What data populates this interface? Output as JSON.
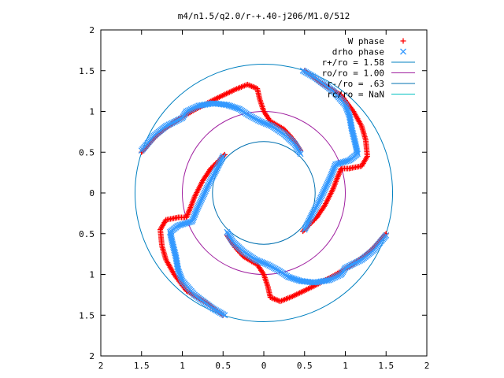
{
  "chart_data": {
    "type": "scatter",
    "title": "m4/n1.5/q2.0/r-+.40-j206/M1.0/512",
    "xlim": [
      -2,
      2
    ],
    "ylim": [
      -2,
      2
    ],
    "x_ticks": [
      -2,
      -1.5,
      -1,
      -0.5,
      0,
      0.5,
      1,
      1.5,
      2
    ],
    "y_ticks": [
      -2,
      -1.5,
      -1,
      -0.5,
      0,
      0.5,
      1,
      1.5,
      2
    ],
    "x_tick_labels": [
      "2",
      "1.5",
      "1",
      "0.5",
      "0",
      "0.5",
      "1",
      "1.5",
      "2"
    ],
    "y_tick_labels": [
      "2",
      "1.5",
      "1",
      "0.5",
      "0",
      "0.5",
      "1",
      "1.5",
      "2"
    ],
    "grid": false,
    "legend_position": "top-right",
    "series": [
      {
        "name": "W phase",
        "kind": "points",
        "marker": "plus",
        "color": "#ff0000",
        "arms": [
          [
            [
              -1.5,
              0.5
            ],
            [
              -1.3,
              0.72
            ],
            [
              -1.1,
              0.87
            ],
            [
              -0.85,
              1.02
            ],
            [
              -0.6,
              1.15
            ],
            [
              -0.35,
              1.27
            ],
            [
              -0.2,
              1.33
            ],
            [
              -0.08,
              1.28
            ],
            [
              -0.05,
              1.15
            ],
            [
              0.0,
              1.0
            ],
            [
              0.08,
              0.88
            ],
            [
              0.25,
              0.78
            ],
            [
              0.35,
              0.67
            ],
            [
              0.45,
              0.52
            ]
          ],
          [
            [
              0.5,
              1.5
            ],
            [
              0.7,
              1.35
            ],
            [
              0.95,
              1.2
            ],
            [
              1.1,
              1.0
            ],
            [
              1.2,
              0.82
            ],
            [
              1.25,
              0.65
            ],
            [
              1.27,
              0.45
            ],
            [
              1.2,
              0.33
            ],
            [
              1.05,
              0.3
            ],
            [
              0.95,
              0.3
            ],
            [
              0.9,
              0.18
            ],
            [
              0.85,
              0.05
            ],
            [
              0.75,
              -0.15
            ],
            [
              0.65,
              -0.3
            ],
            [
              0.48,
              -0.47
            ]
          ],
          [
            [
              1.5,
              -0.5
            ],
            [
              1.3,
              -0.72
            ],
            [
              1.1,
              -0.87
            ],
            [
              0.85,
              -1.02
            ],
            [
              0.6,
              -1.15
            ],
            [
              0.35,
              -1.27
            ],
            [
              0.2,
              -1.33
            ],
            [
              0.08,
              -1.28
            ],
            [
              0.05,
              -1.15
            ],
            [
              0.0,
              -1.0
            ],
            [
              -0.08,
              -0.88
            ],
            [
              -0.25,
              -0.78
            ],
            [
              -0.35,
              -0.67
            ],
            [
              -0.45,
              -0.52
            ]
          ],
          [
            [
              -0.5,
              -1.5
            ],
            [
              -0.7,
              -1.35
            ],
            [
              -0.95,
              -1.2
            ],
            [
              -1.1,
              -1.0
            ],
            [
              -1.2,
              -0.82
            ],
            [
              -1.25,
              -0.65
            ],
            [
              -1.27,
              -0.45
            ],
            [
              -1.2,
              -0.33
            ],
            [
              -1.05,
              -0.3
            ],
            [
              -0.95,
              -0.3
            ],
            [
              -0.9,
              -0.18
            ],
            [
              -0.85,
              -0.05
            ],
            [
              -0.75,
              0.15
            ],
            [
              -0.65,
              0.3
            ],
            [
              -0.48,
              0.47
            ]
          ]
        ]
      },
      {
        "name": "drho phase",
        "kind": "points",
        "marker": "cross",
        "color": "#3399ff",
        "arms": [
          [
            [
              -1.5,
              0.52
            ],
            [
              -1.35,
              0.7
            ],
            [
              -1.2,
              0.82
            ],
            [
              -1.0,
              0.92
            ],
            [
              -0.95,
              1.0
            ],
            [
              -0.8,
              1.07
            ],
            [
              -0.62,
              1.1
            ],
            [
              -0.45,
              1.08
            ],
            [
              -0.3,
              1.03
            ],
            [
              -0.18,
              0.95
            ],
            [
              -0.05,
              0.88
            ],
            [
              0.1,
              0.82
            ],
            [
              0.25,
              0.72
            ],
            [
              0.38,
              0.6
            ],
            [
              0.45,
              0.48
            ]
          ],
          [
            [
              0.48,
              1.5
            ],
            [
              0.62,
              1.42
            ],
            [
              0.85,
              1.25
            ],
            [
              1.0,
              1.08
            ],
            [
              1.05,
              0.95
            ],
            [
              1.08,
              0.78
            ],
            [
              1.12,
              0.62
            ],
            [
              1.15,
              0.48
            ],
            [
              1.05,
              0.4
            ],
            [
              0.88,
              0.35
            ],
            [
              0.82,
              0.2
            ],
            [
              0.75,
              0.05
            ],
            [
              0.68,
              -0.1
            ],
            [
              0.6,
              -0.25
            ],
            [
              0.5,
              -0.45
            ]
          ],
          [
            [
              1.5,
              -0.52
            ],
            [
              1.35,
              -0.7
            ],
            [
              1.2,
              -0.82
            ],
            [
              1.0,
              -0.92
            ],
            [
              0.95,
              -1.0
            ],
            [
              0.8,
              -1.07
            ],
            [
              0.62,
              -1.1
            ],
            [
              0.45,
              -1.08
            ],
            [
              0.3,
              -1.03
            ],
            [
              0.18,
              -0.95
            ],
            [
              0.05,
              -0.88
            ],
            [
              -0.1,
              -0.82
            ],
            [
              -0.25,
              -0.72
            ],
            [
              -0.38,
              -0.6
            ],
            [
              -0.45,
              -0.48
            ]
          ],
          [
            [
              -0.48,
              -1.5
            ],
            [
              -0.62,
              -1.42
            ],
            [
              -0.85,
              -1.25
            ],
            [
              -1.0,
              -1.08
            ],
            [
              -1.05,
              -0.95
            ],
            [
              -1.08,
              -0.78
            ],
            [
              -1.12,
              -0.62
            ],
            [
              -1.15,
              -0.48
            ],
            [
              -1.05,
              -0.4
            ],
            [
              -0.88,
              -0.35
            ],
            [
              -0.82,
              -0.2
            ],
            [
              -0.75,
              -0.05
            ],
            [
              -0.68,
              0.1
            ],
            [
              -0.6,
              0.25
            ],
            [
              -0.5,
              0.45
            ]
          ]
        ]
      },
      {
        "name": "r+/ro = 1.58",
        "kind": "circle",
        "radius": 1.58,
        "color": "#0080c0"
      },
      {
        "name": "ro/ro = 1.00",
        "kind": "circle",
        "radius": 1.0,
        "color": "#a020a0"
      },
      {
        "name": "r-/ro = .63",
        "kind": "circle",
        "radius": 0.63,
        "color": "#0070b0"
      },
      {
        "name": "rc/ro = NaN",
        "kind": "circle",
        "radius": null,
        "color": "#00c0c0"
      }
    ]
  }
}
